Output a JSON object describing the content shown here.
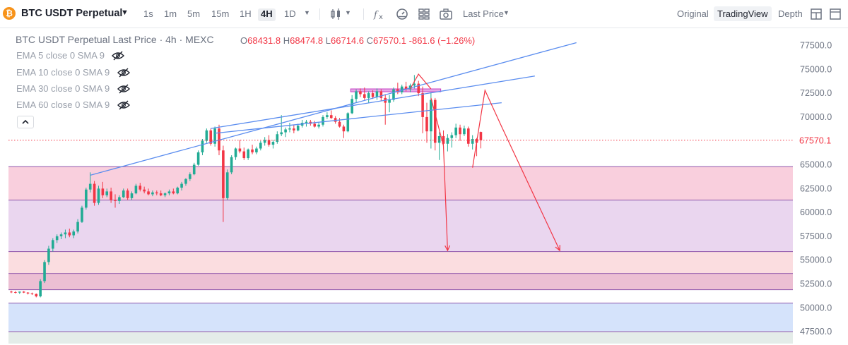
{
  "header": {
    "symbol": "BTC USDT Perpetual",
    "coin_glyph": "₿",
    "timeframes": [
      "1s",
      "1m",
      "5m",
      "15m",
      "1H",
      "4H",
      "1D"
    ],
    "active_timeframe": "4H",
    "price_type": "Last Price",
    "views": [
      "Original",
      "TradingView",
      "Depth"
    ],
    "active_view": "TradingView"
  },
  "legend": {
    "title": "BTC USDT Perpetual Last Price · 4h · MEXC",
    "open_label": "O",
    "open": "68431.8",
    "high_label": "H",
    "high": "68474.8",
    "low_label": "L",
    "low": "66714.6",
    "close_label": "C",
    "close": "67570.1",
    "change": "-861.6 (−1.26%)"
  },
  "indicators": [
    {
      "label": "EMA 5 close 0 SMA 9"
    },
    {
      "label": "EMA 10 close 0 SMA 9"
    },
    {
      "label": "EMA 30 close 0 SMA 9"
    },
    {
      "label": "EMA 60 close 0 SMA 9"
    }
  ],
  "colors": {
    "up": "#22ab94",
    "down": "#f23645",
    "trend": "#5b8def",
    "zone_pink": "#f9cfdd",
    "zone_lilac": "#ead6ef",
    "zone_peach": "#fbdde0",
    "zone_rose": "#ecbfd3",
    "zone_blue": "#d5e3fb",
    "zone_gray": "#e4ece9"
  },
  "chart_data": {
    "type": "candlestick",
    "title": "BTC USDT Perpetual Last Price · 4h · MEXC",
    "y_axis": {
      "ticks": [
        "77500.0",
        "75000.0",
        "72500.0",
        "70000.0",
        "67500.0",
        "65000.0",
        "62500.0",
        "60000.0",
        "57500.0",
        "55000.0",
        "52500.0",
        "50000.0",
        "47500.0"
      ],
      "range": [
        46250,
        78800
      ],
      "position": "right"
    },
    "last_price": "67570.1",
    "candles": [
      [
        51700,
        51800,
        51550,
        51650
      ],
      [
        51650,
        51750,
        51500,
        51600
      ],
      [
        51600,
        51700,
        51450,
        51700
      ],
      [
        51700,
        51750,
        51550,
        51600
      ],
      [
        51600,
        51650,
        51400,
        51500
      ],
      [
        51500,
        51600,
        51350,
        51450
      ],
      [
        51450,
        51500,
        51100,
        51200
      ],
      [
        51200,
        53000,
        51100,
        52800
      ],
      [
        52800,
        55000,
        52600,
        54800
      ],
      [
        54800,
        56500,
        54500,
        56200
      ],
      [
        56200,
        57300,
        55900,
        57100
      ],
      [
        57100,
        57700,
        56800,
        57500
      ],
      [
        57500,
        57900,
        57200,
        57700
      ],
      [
        57700,
        58200,
        57300,
        57900
      ],
      [
        57900,
        58300,
        57400,
        57600
      ],
      [
        57600,
        58200,
        57300,
        58000
      ],
      [
        58000,
        59300,
        57800,
        59000
      ],
      [
        59000,
        60700,
        58900,
        60500
      ],
      [
        60500,
        62600,
        60300,
        62400
      ],
      [
        62400,
        64200,
        62100,
        63000
      ],
      [
        63000,
        63300,
        60700,
        61000
      ],
      [
        61000,
        62800,
        60800,
        62500
      ],
      [
        62500,
        63200,
        61500,
        61800
      ],
      [
        61800,
        62500,
        61600,
        62200
      ],
      [
        62200,
        62600,
        61000,
        61300
      ],
      [
        61300,
        61900,
        60500,
        61200
      ],
      [
        61200,
        61800,
        60900,
        61600
      ],
      [
        61600,
        62500,
        61500,
        62300
      ],
      [
        62300,
        62500,
        61300,
        61500
      ],
      [
        61500,
        62200,
        61300,
        62000
      ],
      [
        62000,
        63000,
        61900,
        62800
      ],
      [
        62800,
        63100,
        62200,
        62400
      ],
      [
        62400,
        62700,
        62000,
        62200
      ],
      [
        62200,
        62500,
        61800,
        61900
      ],
      [
        61900,
        62300,
        61700,
        62100
      ],
      [
        62100,
        62300,
        61800,
        62000
      ],
      [
        62000,
        62300,
        61700,
        61800
      ],
      [
        61800,
        62100,
        61600,
        62000
      ],
      [
        62000,
        62400,
        61800,
        62200
      ],
      [
        62200,
        62500,
        61900,
        62000
      ],
      [
        62000,
        62700,
        61900,
        62600
      ],
      [
        62600,
        63200,
        62300,
        63000
      ],
      [
        63000,
        63600,
        62800,
        63500
      ],
      [
        63500,
        64200,
        63300,
        64000
      ],
      [
        64000,
        65200,
        63900,
        65000
      ],
      [
        65000,
        66500,
        64900,
        66300
      ],
      [
        66300,
        67700,
        66000,
        67500
      ],
      [
        67500,
        68800,
        67300,
        68600
      ],
      [
        68600,
        68800,
        67000,
        67200
      ],
      [
        67200,
        69000,
        66900,
        68800
      ],
      [
        68800,
        69200,
        66000,
        66500
      ],
      [
        66500,
        67000,
        59000,
        61500
      ],
      [
        61500,
        64500,
        61300,
        64200
      ],
      [
        64200,
        66000,
        64000,
        65800
      ],
      [
        65800,
        66800,
        65500,
        66700
      ],
      [
        66700,
        67600,
        66200,
        66400
      ],
      [
        66400,
        66800,
        65500,
        65700
      ],
      [
        65700,
        66700,
        65500,
        66600
      ],
      [
        66600,
        67100,
        66100,
        66300
      ],
      [
        66300,
        66900,
        66100,
        66700
      ],
      [
        66700,
        67500,
        66500,
        67300
      ],
      [
        67300,
        67900,
        67000,
        67600
      ],
      [
        67600,
        68100,
        66900,
        67100
      ],
      [
        67100,
        67600,
        66700,
        67400
      ],
      [
        67400,
        68500,
        67200,
        68200
      ],
      [
        68200,
        70200,
        68000,
        68400
      ],
      [
        68400,
        68900,
        67900,
        68700
      ],
      [
        68700,
        69400,
        68400,
        68800
      ],
      [
        68800,
        69200,
        68300,
        68600
      ],
      [
        68600,
        69300,
        68500,
        69100
      ],
      [
        69100,
        69700,
        68900,
        69400
      ],
      [
        69400,
        69700,
        69000,
        69500
      ],
      [
        69500,
        69700,
        69100,
        69300
      ],
      [
        69300,
        69600,
        68900,
        69000
      ],
      [
        69000,
        69400,
        68800,
        69200
      ],
      [
        69200,
        70200,
        69000,
        70000
      ],
      [
        70000,
        70500,
        69800,
        70200
      ],
      [
        70200,
        70700,
        69800,
        69900
      ],
      [
        69900,
        70100,
        69300,
        69500
      ],
      [
        69500,
        69900,
        68900,
        69000
      ],
      [
        69000,
        69200,
        67800,
        68500
      ],
      [
        68500,
        70500,
        68400,
        70400
      ],
      [
        70400,
        72300,
        70300,
        71900
      ],
      [
        71900,
        72900,
        71500,
        72700
      ],
      [
        72700,
        73000,
        72100,
        72400
      ],
      [
        72400,
        73100,
        71800,
        72000
      ],
      [
        72000,
        72700,
        71500,
        72500
      ],
      [
        72500,
        72800,
        71900,
        72100
      ],
      [
        72100,
        73000,
        71800,
        72700
      ],
      [
        72700,
        72900,
        71700,
        72000
      ],
      [
        72000,
        72400,
        69200,
        71500
      ],
      [
        71500,
        72300,
        70500,
        71800
      ],
      [
        71800,
        73100,
        71600,
        72900
      ],
      [
        72900,
        73600,
        72400,
        72600
      ],
      [
        72600,
        73400,
        72400,
        73200
      ],
      [
        73200,
        73700,
        72700,
        72900
      ],
      [
        72900,
        73500,
        72600,
        73300
      ],
      [
        73300,
        74400,
        73000,
        73500
      ],
      [
        73500,
        73800,
        72200,
        72500
      ],
      [
        72500,
        73200,
        68300,
        70000
      ],
      [
        70000,
        71500,
        67300,
        68500
      ],
      [
        68500,
        72600,
        66700,
        71800
      ],
      [
        71800,
        72000,
        66500,
        67300
      ],
      [
        67300,
        68400,
        65500,
        68000
      ],
      [
        68000,
        68600,
        66700,
        67200
      ],
      [
        67200,
        68200,
        66400,
        67800
      ],
      [
        67800,
        68400,
        66800,
        68100
      ],
      [
        68100,
        69300,
        67800,
        68900
      ],
      [
        68900,
        69200,
        67500,
        68200
      ],
      [
        68200,
        69100,
        68000,
        68800
      ],
      [
        68800,
        69000,
        66900,
        67200
      ],
      [
        67200,
        68100,
        66600,
        67700
      ],
      [
        67700,
        67800,
        65900,
        67300
      ],
      [
        68431.8,
        68474.8,
        66714.6,
        67570.1
      ]
    ],
    "zones": [
      {
        "from": 61300,
        "to": 64800,
        "color": "zone_pink"
      },
      {
        "from": 55900,
        "to": 61300,
        "color": "zone_lilac"
      },
      {
        "from": 51900,
        "to": 55900,
        "color": "zone_peach"
      },
      {
        "from": 51900,
        "to": 53600,
        "color": "zone_rose"
      },
      {
        "from": 47500,
        "to": 50500,
        "color": "zone_blue"
      },
      {
        "from": 46250,
        "to": 47500,
        "color": "zone_gray"
      }
    ],
    "zone_lines": [
      64800,
      61300,
      55900,
      53600,
      51900,
      50500,
      47500
    ],
    "resistance_zone": {
      "from_candle": 82,
      "to_candle": 103,
      "top": 72950,
      "bottom": 72650
    },
    "trendlines": [
      {
        "from": [
          19,
          63900
        ],
        "to": [
          136,
          77800
        ]
      },
      {
        "from": [
          48,
          68800
        ],
        "to": [
          126,
          74300
        ]
      },
      {
        "from": [
          49,
          68300
        ],
        "to": [
          118,
          71500
        ]
      }
    ],
    "projection_paths": [
      [
        [
          96,
          72950
        ],
        [
          98,
          74500
        ],
        [
          101,
          72950
        ]
      ],
      [
        [
          101,
          72000
        ],
        [
          104,
          67000
        ],
        [
          105,
          56000
        ]
      ],
      [
        [
          111,
          64700
        ],
        [
          114,
          72800
        ],
        [
          118,
          69000
        ],
        [
          132,
          56000
        ]
      ]
    ],
    "grid": false,
    "legend_position": "top-left"
  }
}
